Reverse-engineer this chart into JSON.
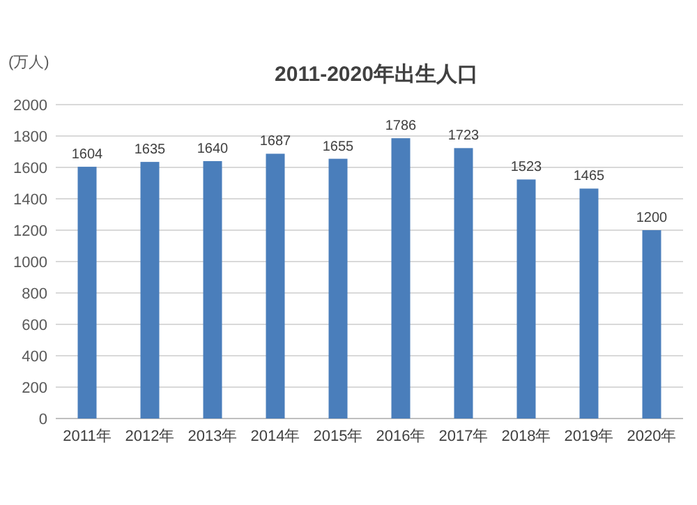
{
  "chart_data": {
    "type": "bar",
    "title": "2011-2020年出生人口",
    "ylabel": "(万人)",
    "categories": [
      "2011年",
      "2012年",
      "2013年",
      "2014年",
      "2015年",
      "2016年",
      "2017年",
      "2018年",
      "2019年",
      "2020年"
    ],
    "values": [
      1604,
      1635,
      1640,
      1687,
      1655,
      1786,
      1723,
      1523,
      1465,
      1200
    ],
    "color": "#4a7ebb",
    "ylim": [
      0,
      2000
    ],
    "yticks": [
      0,
      200,
      400,
      600,
      800,
      1000,
      1200,
      1400,
      1600,
      1800,
      2000
    ],
    "grid": "y",
    "data_labels": true
  }
}
